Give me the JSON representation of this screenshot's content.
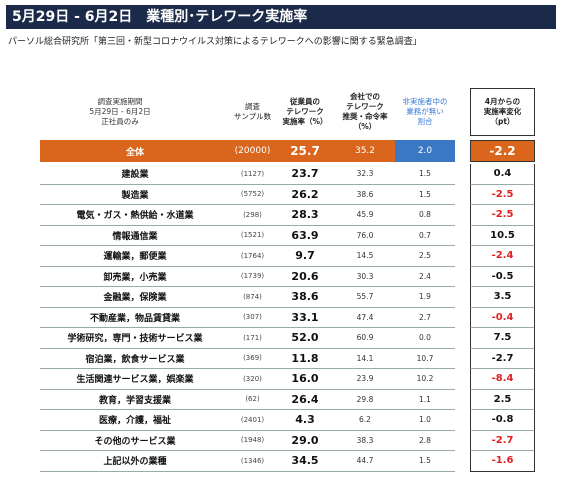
{
  "header": {
    "title": "5月29日 - 6月2日　業種別･テレワーク実施率",
    "source": "パーソル総合研究所「第三回・新型コロナウイルス対策によるテレワークへの影響に関する緊急調査」"
  },
  "table": {
    "period": "調査実施期間\n5月29日 - 6月2日\n正社員のみ",
    "columns": [
      "調査\nサンプル数",
      "従業員の\nテレワーク\n実施率（%）",
      "会社での\nテレワーク\n推奨・命令率\n（%）",
      "非実施者中の\n業務が無い\n割合",
      "4月からの\n実施率変化\n（pt）"
    ],
    "total": {
      "industry": "全体",
      "sample": "(20000)",
      "rate": "25.7",
      "recommend": "35.2",
      "no_work": "2.0",
      "change": "-2.2"
    },
    "rows": [
      {
        "industry": "建設業",
        "sample": "(1127)",
        "rate": "23.7",
        "recommend": "32.3",
        "no_work": "1.5",
        "change": "0.4",
        "change_color": "#111111"
      },
      {
        "industry": "製造業",
        "sample": "(5752)",
        "rate": "26.2",
        "recommend": "38.6",
        "no_work": "1.5",
        "change": "-2.5",
        "change_color": "#e02020"
      },
      {
        "industry": "電気・ガス・熱供給・水道業",
        "sample": "(298)",
        "rate": "28.3",
        "recommend": "45.9",
        "no_work": "0.8",
        "change": "-2.5",
        "change_color": "#e02020"
      },
      {
        "industry": "情報通信業",
        "sample": "(1521)",
        "rate": "63.9",
        "recommend": "76.0",
        "no_work": "0.7",
        "change": "10.5",
        "change_color": "#111111"
      },
      {
        "industry": "運輸業，郵便業",
        "sample": "(1764)",
        "rate": "9.7",
        "recommend": "14.5",
        "no_work": "2.5",
        "change": "-2.4",
        "change_color": "#e02020"
      },
      {
        "industry": "卸売業，小売業",
        "sample": "(1739)",
        "rate": "20.6",
        "recommend": "30.3",
        "no_work": "2.4",
        "change": "-0.5",
        "change_color": "#111111"
      },
      {
        "industry": "金融業，保険業",
        "sample": "(874)",
        "rate": "38.6",
        "recommend": "55.7",
        "no_work": "1.9",
        "change": "3.5",
        "change_color": "#111111"
      },
      {
        "industry": "不動産業，物品賃貸業",
        "sample": "(307)",
        "rate": "33.1",
        "recommend": "47.4",
        "no_work": "2.7",
        "change": "-0.4",
        "change_color": "#e02020"
      },
      {
        "industry": "学術研究，専門・技術サービス業",
        "sample": "(171)",
        "rate": "52.0",
        "recommend": "60.9",
        "no_work": "0.0",
        "change": "7.5",
        "change_color": "#111111"
      },
      {
        "industry": "宿泊業，飲食サービス業",
        "sample": "(369)",
        "rate": "11.8",
        "recommend": "14.1",
        "no_work": "10.7",
        "change": "-2.7",
        "change_color": "#111111"
      },
      {
        "industry": "生活関連サービス業，娯楽業",
        "sample": "(320)",
        "rate": "16.0",
        "recommend": "23.9",
        "no_work": "10.2",
        "change": "-8.4",
        "change_color": "#e02020"
      },
      {
        "industry": "教育，学習支援業",
        "sample": "(62)",
        "rate": "26.4",
        "recommend": "29.8",
        "no_work": "1.1",
        "change": "2.5",
        "change_color": "#111111"
      },
      {
        "industry": "医療，介護，福祉",
        "sample": "(2401)",
        "rate": "4.3",
        "recommend": "6.2",
        "no_work": "1.0",
        "change": "-0.8",
        "change_color": "#111111"
      },
      {
        "industry": "その他のサービス業",
        "sample": "(1948)",
        "rate": "29.0",
        "recommend": "38.3",
        "no_work": "2.8",
        "change": "-2.7",
        "change_color": "#e02020"
      },
      {
        "industry": "上記以外の業種",
        "sample": "(1346)",
        "rate": "34.5",
        "recommend": "44.7",
        "no_work": "1.5",
        "change": "-1.6",
        "change_color": "#e02020"
      }
    ]
  }
}
